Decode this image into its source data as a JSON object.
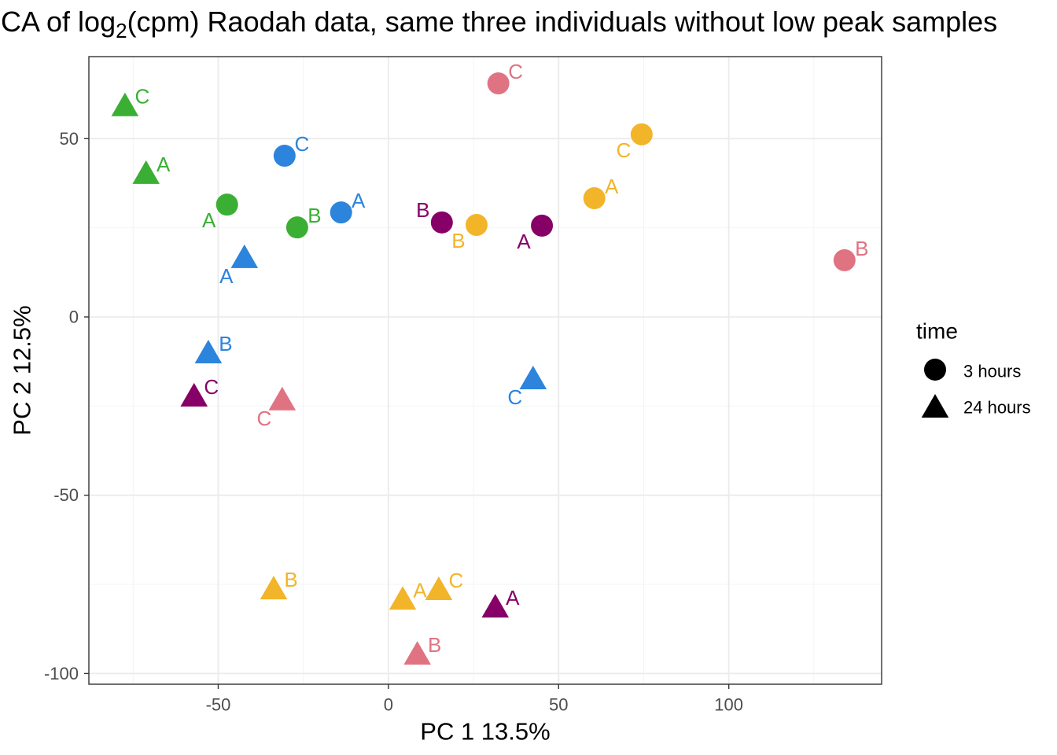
{
  "chart_data": {
    "type": "scatter",
    "title": {
      "text": "CA of log",
      "subscript": "2",
      "text_after": "(cpm) Raodah data, same three individuals without low peak samples"
    },
    "xlabel": "PC 1 13.5%",
    "ylabel": "PC 2 12.5%",
    "xlim": [
      -88,
      144.9
    ],
    "ylim": [
      -103,
      73
    ],
    "xticks": [
      -50,
      0,
      50,
      100
    ],
    "yticks": [
      -100,
      -50,
      0,
      50
    ],
    "grid": true,
    "legend": {
      "title": "time",
      "placement": "right",
      "entries": [
        {
          "label": "3 hours",
          "shape": "circle"
        },
        {
          "label": "24 hours",
          "shape": "triangle"
        }
      ]
    },
    "series": [
      {
        "color": "#3AAF34",
        "points": [
          {
            "x": -47.4,
            "y": 31.5,
            "label": "A",
            "shape": "circle",
            "label_side": "lower-left"
          },
          {
            "x": -26.8,
            "y": 25.1,
            "label": "B",
            "shape": "circle",
            "label_side": "upper-right"
          },
          {
            "x": -71.2,
            "y": 39.5,
            "label": "A",
            "shape": "triangle",
            "label_side": "upper-right"
          },
          {
            "x": -77.4,
            "y": 58.5,
            "label": "C",
            "shape": "triangle",
            "label_side": "upper-right"
          }
        ]
      },
      {
        "color": "#2C84DC",
        "points": [
          {
            "x": -13.9,
            "y": 29.3,
            "label": "A",
            "shape": "circle",
            "label_side": "upper-right"
          },
          {
            "x": -30.5,
            "y": 45.2,
            "label": "C",
            "shape": "circle",
            "label_side": "upper-right"
          },
          {
            "x": -42.3,
            "y": 15.9,
            "label": "A",
            "shape": "triangle",
            "label_side": "lower-left"
          },
          {
            "x": -52.9,
            "y": -10.8,
            "label": "B",
            "shape": "triangle",
            "label_side": "upper-right"
          },
          {
            "x": 42.5,
            "y": -18.1,
            "label": "C",
            "shape": "triangle",
            "label_side": "lower-left"
          }
        ]
      },
      {
        "color": "#870068",
        "points": [
          {
            "x": 45.1,
            "y": 25.6,
            "label": "A",
            "shape": "circle",
            "label_side": "lower-left"
          },
          {
            "x": 15.7,
            "y": 26.5,
            "label": "B",
            "shape": "circle",
            "label_side": "upper-left"
          },
          {
            "x": 31.4,
            "y": -82.1,
            "label": "A",
            "shape": "triangle",
            "label_side": "upper-right"
          },
          {
            "x": -57.1,
            "y": -22.9,
            "label": "C",
            "shape": "triangle",
            "label_side": "upper-right"
          }
        ]
      },
      {
        "color": "#E07382",
        "points": [
          {
            "x": 134.0,
            "y": 15.9,
            "label": "B",
            "shape": "circle",
            "label_side": "upper-right"
          },
          {
            "x": 32.3,
            "y": 65.5,
            "label": "C",
            "shape": "circle",
            "label_side": "upper-right"
          },
          {
            "x": 8.5,
            "y": -95.3,
            "label": "B",
            "shape": "triangle",
            "label_side": "upper-right"
          },
          {
            "x": -31.2,
            "y": -24.0,
            "label": "C",
            "shape": "triangle",
            "label_side": "lower-left"
          }
        ]
      },
      {
        "color": "#F2B52A",
        "points": [
          {
            "x": 60.5,
            "y": 33.3,
            "label": "A",
            "shape": "circle",
            "label_side": "upper-right"
          },
          {
            "x": 25.9,
            "y": 25.8,
            "label": "B",
            "shape": "circle",
            "label_side": "lower-left"
          },
          {
            "x": 74.4,
            "y": 51.2,
            "label": "C",
            "shape": "circle",
            "label_side": "lower-left"
          },
          {
            "x": 4.2,
            "y": -79.9,
            "label": "A",
            "shape": "triangle",
            "label_side": "upper-right"
          },
          {
            "x": -33.7,
            "y": -77.0,
            "label": "B",
            "shape": "triangle",
            "label_side": "upper-right"
          },
          {
            "x": 14.8,
            "y": -77.2,
            "label": "C",
            "shape": "triangle",
            "label_side": "upper-right"
          }
        ]
      }
    ]
  }
}
